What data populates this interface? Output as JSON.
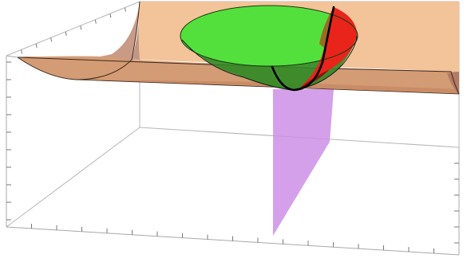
{
  "figure": {
    "type": "3d-surface-plot",
    "elements": [
      "bounding-box",
      "tick-marks",
      "orange-parabolic-trough-surface",
      "green-paraboloid-bowl",
      "red-paraboloid-section",
      "purple-vertical-plane",
      "black-intersection-curve"
    ],
    "colors": {
      "trough": "#f3c39a",
      "trough_front": "#c98c66",
      "trough_inner": "#b88c79",
      "bowl_green": "#54e03c",
      "bowl_green_dark": "#2f8a25",
      "bowl_red": "#e8241b",
      "plane_purple": "#cd8fe6",
      "curve": "#000000",
      "box": "#a0a0a0"
    },
    "axis_tick_labels": []
  }
}
